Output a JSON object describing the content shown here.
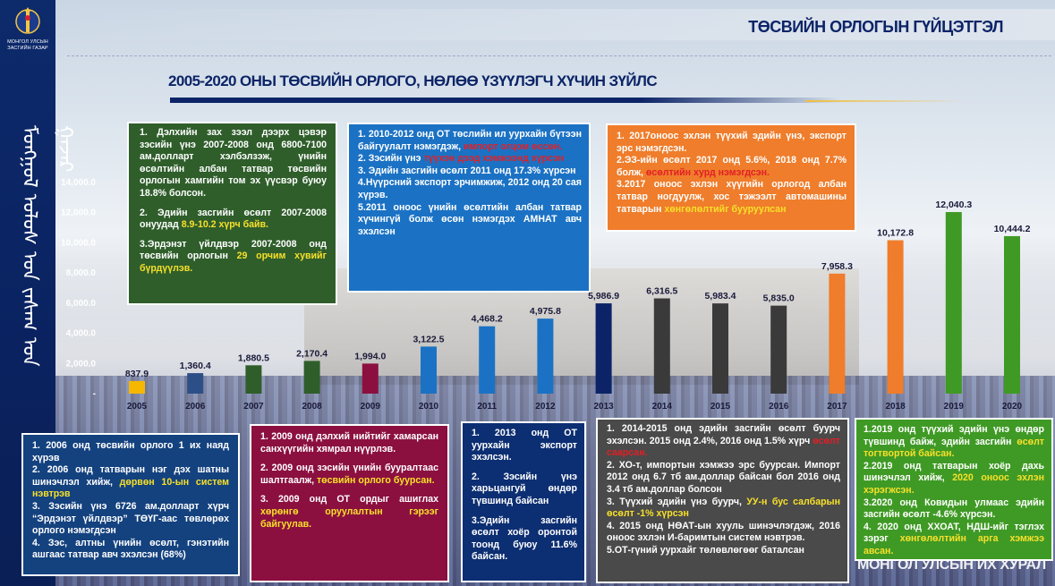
{
  "header": {
    "org_name": "МОНГОЛ УЛСЫН ЗАСГИЙН ГАЗАР",
    "vertical_script": "ᠮᠣᠩᠭᠣᠯ ᠤᠯᠤᠰ ᠤᠨ ᠵᠠᠰᠠᠭ ᠤᠨ ᠭᠠᠵᠠᠷ",
    "title": "ТӨСВИЙН ОРЛОГЫН ГҮЙЦЭТГЭЛ",
    "subtitle": "2005-2020 ОНЫ ТӨСВИЙН ОРЛОГО, НӨЛӨӨ ҮЗҮҮЛЭГЧ ХҮЧИН ЗҮЙЛС"
  },
  "colors": {
    "navy": "#0c2467",
    "green": "#2f5e2b",
    "blue": "#1b72c4",
    "orange": "#ef7d2b",
    "maroon": "#8b1040",
    "lime": "#3f9a25",
    "yellow": "#f7e02a"
  },
  "chart_data": {
    "type": "bar",
    "categories": [
      "2005",
      "2006",
      "2007",
      "2008",
      "2009",
      "2010",
      "2011",
      "2012",
      "2013",
      "2014",
      "2015",
      "2016",
      "2017",
      "2018",
      "2019",
      "2020"
    ],
    "values": [
      837.9,
      1360.4,
      1880.5,
      2170.4,
      1994.0,
      3122.5,
      4468.2,
      4975.8,
      5986.9,
      6316.5,
      5983.4,
      5835.0,
      7958.3,
      10172.8,
      12040.3,
      10444.2
    ],
    "value_labels": [
      "837.9",
      "1,360.4",
      "1,880.5",
      "2,170.4",
      "1,994.0",
      "3,122.5",
      "4,468.2",
      "4,975.8",
      "5,986.9",
      "6,316.5",
      "5,983.4",
      "5,835.0",
      "7,958.3",
      "10,172.8",
      "12,040.3",
      "10,444.2"
    ],
    "bar_colors": [
      "#f5b700",
      "#2d4f88",
      "#2f5e2b",
      "#2f5e2b",
      "#8b1040",
      "#1b72c4",
      "#1b72c4",
      "#1b72c4",
      "#0c2467",
      "#3a3a3a",
      "#3a3a3a",
      "#3a3a3a",
      "#ef7d2b",
      "#ef7d2b",
      "#3f9a25",
      "#3f9a25"
    ],
    "y_ticks": [
      0,
      2000,
      4000,
      6000,
      8000,
      10000,
      12000,
      14000
    ],
    "y_tick_labels": [
      "-",
      "2,000.0",
      "4,000.0",
      "6,000.0",
      "8,000.0",
      "10,000.0",
      "12,000.0",
      "14,000.0"
    ],
    "ylim": [
      0,
      14000
    ],
    "grid": false,
    "legend": "none",
    "title": "",
    "xlabel": "",
    "ylabel": ""
  },
  "notes": {
    "green": [
      {
        "t": "1. Дэлхийн зах зээл дээрх цэвэр зэсийн үнэ 2007-2008 онд 6800-7100 ам.долларт хэлбэлзэж, үнийн өсөлтийн албан татвар төсвийн орлогын хамгийн том эх үүсвэр буюу 18.8% болсон."
      },
      {
        "t": "2. Эдийн засгийн өсөлт 2007-2008 онуудад ",
        "h": "8.9-10.2 хүрч байв."
      },
      {
        "t": "3.Эрдэнэт үйлдвэр 2007-2008 онд төсвийн орлогын ",
        "h": "29 орчим хувийг бүрдүүлэв."
      }
    ],
    "blue": [
      {
        "t": "1. 2010-2012 онд ОТ төслийн ил уурхайн бүтээн байгуулалт нэмэгдэж, ",
        "r": "импорт огцом өссөн."
      },
      {
        "t": "2. Зэсийн үнэ ",
        "r": "түүхэн дээд хэмжээнд хүрсэн"
      },
      {
        "t": "3. Эдийн засгийн өсөлт 2011 онд 17.3% хүрсэн"
      },
      {
        "t": "4.Нүүрсний экспорт эрчимжиж, 2012 онд 20 сая хүрэв."
      },
      {
        "t": "5.2011 оноос үнийн өсөлтийн албан татвар хүчингүй болж өсөн нэмэгдэх АМНАТ авч эхэлсэн"
      }
    ],
    "orange": [
      {
        "t": "1. 2017оноос эхлэн түүхий эдийн үнэ, экспорт эрс нэмэгдсэн."
      },
      {
        "t": "2.ЭЗ-ийн өсөлт 2017 онд 5.6%, 2018 онд 7.7% болж, ",
        "r": "өсөлтийн хурд нэмэгдсэн."
      },
      {
        "t": "3.2017 оноос эхлэн хүүгийн орлогод албан татвар ногдуулж, хос тэжээлт автомашины татварын ",
        "h": "хөнгөлөлтийг бууруулсан"
      }
    ],
    "navy": [
      {
        "t": "1. 2006 онд төсвийн орлого 1 их наяд хүрэв"
      },
      {
        "t": "2. 2006 онд татварын нэг дэх шатны шинэчлэл хийж, ",
        "h": "дөрвөн 10-ын систем нэвтрэв"
      },
      {
        "t": "3. Зэсийн үнэ 6726 ам.долларт хүрч “Эрдэнэт үйлдвэр” ТӨҮГ-аас төвлөрөх орлого нэмэгдсэн"
      },
      {
        "t": "4. Зэс, алтны үнийн өсөлт, гэнэтийн ашгаас татвар авч эхэлсэн (68%)"
      }
    ],
    "maroon": [
      {
        "t": "1. 2009 онд дэлхий нийтийг хамарсан санхүүгийн хямрал нүүрлэв."
      },
      {
        "t": "2. 2009 онд зэсийн үнийн бууралтаас шалтгаалж, ",
        "h": "төсвийн орлого буурсан."
      },
      {
        "t": "3. 2009 онд ОТ ордыг ашиглах ",
        "h": "хөрөнгө оруулалтын гэрээг байгуулав."
      }
    ],
    "dark": [
      {
        "t": "1. 2013 онд ОТ уурхайн экспорт эхэлсэн."
      },
      {
        "t": "2. Зэсийн үнэ харьцангуй өндөр түвшинд байсан"
      },
      {
        "t": "3.Эдийн засгийн өсөлт хоёр оронтой тоонд буюу 11.6% байсан."
      }
    ],
    "grey": [
      {
        "t": "1. 2014-2015 онд эдийн засгийн өсөлт буурч эхэлсэн. 2015 онд 2.4%, 2016 онд 1.5% хүрч ",
        "r": "өсөлт саарсан."
      },
      {
        "t": "2. ХО-т, импортын хэмжээ эрс буурсан. Импорт 2012 онд 6.7 тб ам.доллар байсан бол 2016 онд 3.4 тб ам.доллар болсон"
      },
      {
        "t": "3. Түүхий эдийн үнэ буурч, ",
        "h": "УУ-н бус салбарын өсөлт -1% хүрсэн"
      },
      {
        "t": "4. 2015 онд НӨАТ-ын хууль шинэчлэгдэж, 2016 оноос эхлэн И-баримтын систем нэвтрэв."
      },
      {
        "t": "5.ОТ-гүний уурхайг төлөвлөгөөг баталсан"
      }
    ],
    "lime": [
      {
        "t": "1.2019 онд түүхий эдийн үнэ өндөр түвшинд байж, эдийн засгийн ",
        "h": "өсөлт тогтвортой байсан."
      },
      {
        "t": "2.2019 онд татварын хоёр дахь шинэчлэл хийж, ",
        "h": "2020 оноос эхлэн хэрэгжсэн."
      },
      {
        "t": "3.2020 онд Ковидын улмаас эдийн засгийн өсөлт -4.6% хүрсэн."
      },
      {
        "t": "4. 2020 онд ХХОАТ, НДШ-ийг тэглэх зэрэг ",
        "h": "хөнгөлөлтийн арга хэмжээ авсан."
      }
    ]
  },
  "footer": {
    "watermark": "МОНГОЛ УЛСЫН ИХ ХУРАЛ"
  }
}
